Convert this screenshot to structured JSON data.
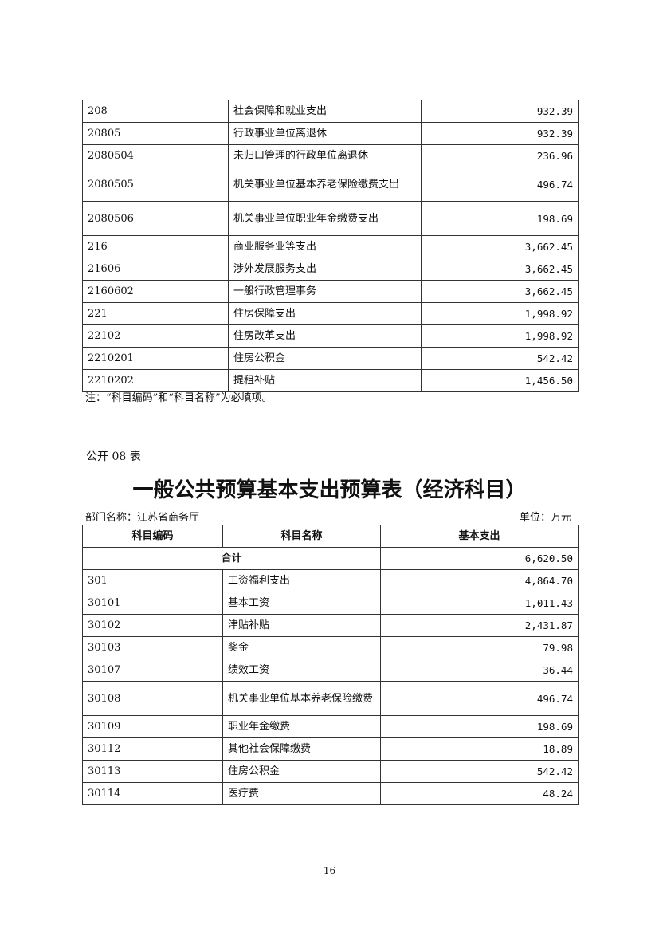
{
  "table1": {
    "rows": [
      {
        "code": "208",
        "name": "社会保障和就业支出",
        "amount": "932.39"
      },
      {
        "code": "20805",
        "name": "行政事业单位离退休",
        "amount": "932.39"
      },
      {
        "code": "2080504",
        "name": "未归口管理的行政单位离退休",
        "amount": "236.96"
      },
      {
        "code": "2080505",
        "name": "机关事业单位基本养老保险缴费支出",
        "amount": "496.74"
      },
      {
        "code": "2080506",
        "name": "机关事业单位职业年金缴费支出",
        "amount": "198.69"
      },
      {
        "code": "216",
        "name": "商业服务业等支出",
        "amount": "3,662.45"
      },
      {
        "code": "21606",
        "name": "涉外发展服务支出",
        "amount": "3,662.45"
      },
      {
        "code": "2160602",
        "name": "一般行政管理事务",
        "amount": "3,662.45"
      },
      {
        "code": "221",
        "name": "住房保障支出",
        "amount": "1,998.92"
      },
      {
        "code": "22102",
        "name": "住房改革支出",
        "amount": "1,998.92"
      },
      {
        "code": "2210201",
        "name": "住房公积金",
        "amount": "542.42"
      },
      {
        "code": "2210202",
        "name": "提租补贴",
        "amount": "1,456.50"
      }
    ],
    "note": "注：“科目编码”和“科目名称”为必填项。"
  },
  "table2": {
    "label": "公开 08 表",
    "title": "一般公共预算基本支出预算表（经济科目）",
    "dept": "部门名称：江苏省商务厅",
    "unit": "单位：万元",
    "headers": [
      "科目编码",
      "科目名称",
      "基本支出"
    ],
    "total_label": "合计",
    "total_amount": "6,620.50",
    "rows": [
      {
        "code": "301",
        "name": "工资福利支出",
        "amount": "4,864.70"
      },
      {
        "code": "30101",
        "name": "基本工资",
        "amount": "1,011.43"
      },
      {
        "code": "30102",
        "name": "津贴补贴",
        "amount": "2,431.87"
      },
      {
        "code": "30103",
        "name": "奖金",
        "amount": "79.98"
      },
      {
        "code": "30107",
        "name": "绩效工资",
        "amount": "36.44"
      },
      {
        "code": "30108",
        "name": "机关事业单位基本养老保险缴费",
        "amount": "496.74"
      },
      {
        "code": "30109",
        "name": "职业年金缴费",
        "amount": "198.69"
      },
      {
        "code": "30112",
        "name": "其他社会保障缴费",
        "amount": "18.89"
      },
      {
        "code": "30113",
        "name": "住房公积金",
        "amount": "542.42"
      },
      {
        "code": "30114",
        "name": "医疗费",
        "amount": "48.24"
      }
    ]
  },
  "page_number": "16"
}
